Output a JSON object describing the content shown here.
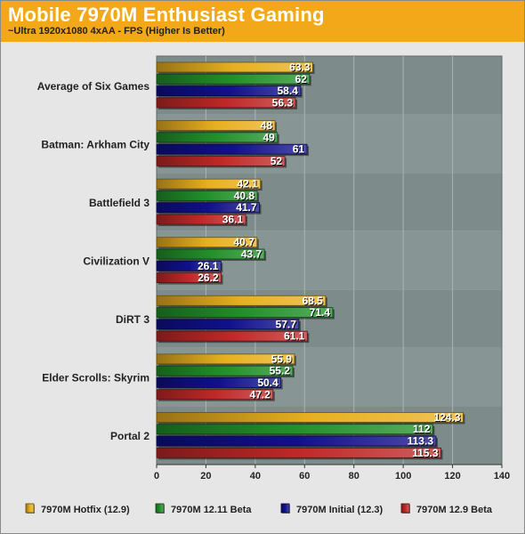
{
  "header": {
    "title": "Mobile 7970M Enthusiast Gaming",
    "subtitle": "~Ultra 1920x1080 4xAA - FPS (Higher Is Better)"
  },
  "chart_data": {
    "type": "bar",
    "orientation": "horizontal",
    "title": "Mobile 7970M Enthusiast Gaming",
    "subtitle": "~Ultra 1920x1080 4xAA - FPS (Higher Is Better)",
    "categories": [
      "Average of Six Games",
      "Batman: Arkham City",
      "Battlefield 3",
      "Civilization V",
      "DiRT 3",
      "Elder Scrolls: Skyrim",
      "Portal 2"
    ],
    "series": [
      {
        "name": "7970M Hotfix (12.9)",
        "color": "#e8b020",
        "values": [
          63.3,
          48,
          42.1,
          40.7,
          68.5,
          55.9,
          124.3
        ],
        "labels": [
          "63.3",
          "48",
          "42.1",
          "40.7",
          "68.5",
          "55.9",
          "124.3"
        ]
      },
      {
        "name": "7970M 12.11 Beta",
        "color": "#22902a",
        "values": [
          62,
          49,
          40.8,
          43.7,
          71.4,
          55.2,
          112
        ],
        "labels": [
          "62",
          "49",
          "40.8",
          "43.7",
          "71.4",
          "55.2",
          "112"
        ]
      },
      {
        "name": "7970M Initial (12.3)",
        "color": "#10108c",
        "values": [
          58.4,
          61,
          41.7,
          26.1,
          57.7,
          50.4,
          113.3
        ],
        "labels": [
          "58.4",
          "61",
          "41.7",
          "26.1",
          "57.7",
          "50.4",
          "113.3"
        ]
      },
      {
        "name": "7970M 12.9 Beta",
        "color": "#c02828",
        "values": [
          56.3,
          52,
          36.1,
          26.2,
          61.1,
          47.2,
          115.3
        ],
        "labels": [
          "56.3",
          "52",
          "36.1",
          "26.2",
          "61.1",
          "47.2",
          "115.3"
        ]
      }
    ],
    "xlim": [
      0,
      140
    ],
    "xticks": [
      0,
      20,
      40,
      60,
      80,
      100,
      120,
      140
    ],
    "xtick_labels": [
      "0",
      "20",
      "40",
      "60",
      "80",
      "100",
      "120",
      "140"
    ],
    "grid": true,
    "legend": "bottom"
  }
}
